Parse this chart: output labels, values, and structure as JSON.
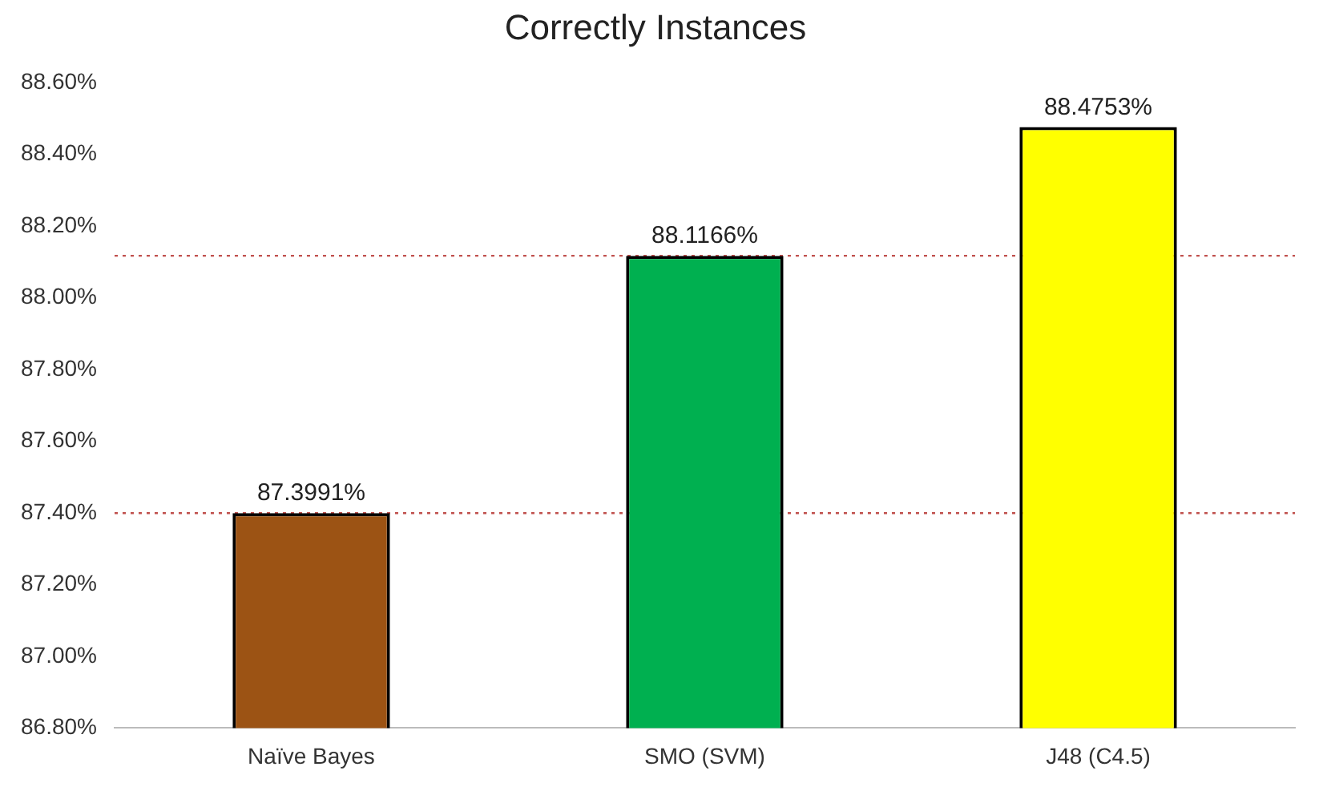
{
  "chart_data": {
    "type": "bar",
    "title": "Correctly Instances",
    "categories": [
      "Naïve Bayes",
      "SMO (SVM)",
      "J48 (C4.5)"
    ],
    "values": [
      87.3991,
      88.1166,
      88.4753
    ],
    "colors": [
      "#9c5314",
      "#00b050",
      "#ffff00"
    ],
    "value_labels": [
      "87.3991%",
      "88.1166%",
      "88.4753%"
    ],
    "ylim": [
      86.8,
      88.6
    ],
    "yticks": [
      {
        "value": 86.8,
        "label": "86.80%"
      },
      {
        "value": 87.0,
        "label": "87.00%"
      },
      {
        "value": 87.2,
        "label": "87.20%"
      },
      {
        "value": 87.4,
        "label": "87.40%"
      },
      {
        "value": 87.6,
        "label": "87.60%"
      },
      {
        "value": 87.8,
        "label": "87.80%"
      },
      {
        "value": 88.0,
        "label": "88.00%"
      },
      {
        "value": 88.2,
        "label": "88.20%"
      },
      {
        "value": 88.4,
        "label": "88.40%"
      },
      {
        "value": 88.6,
        "label": "88.60%"
      }
    ],
    "ref_lines": [
      {
        "axis": "y",
        "value": 87.3991,
        "color": "#c0504d",
        "line_style": "dotted"
      },
      {
        "axis": "y",
        "value": 88.1166,
        "color": "#c0504d",
        "line_style": "dotted"
      }
    ],
    "grid": false,
    "legend": false
  }
}
